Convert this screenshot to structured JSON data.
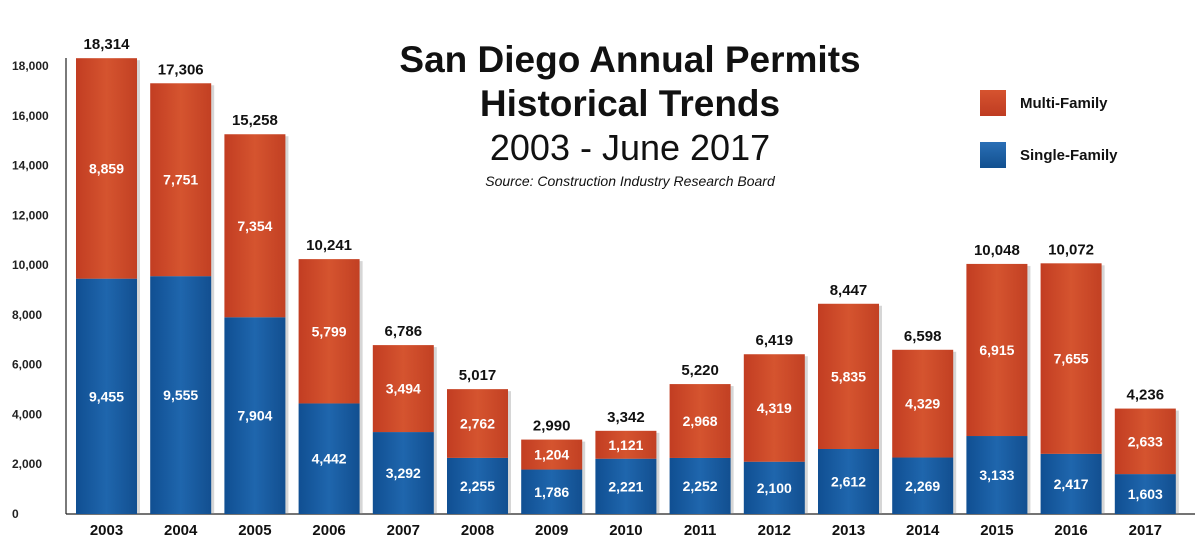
{
  "title": {
    "line1": "San Diego Annual Permits",
    "line2": "Historical Trends",
    "subtitle": "2003 - June 2017",
    "source": "Source: Construction Industry Research Board"
  },
  "legend": {
    "multi": "Multi-Family",
    "single": "Single-Family"
  },
  "colors": {
    "multi": "#d0482a",
    "single": "#1f62a8"
  },
  "chart_data": {
    "type": "bar",
    "stacked": true,
    "title": "San Diego Annual Permits Historical Trends",
    "subtitle": "2003 - June 2017",
    "categories": [
      "2003",
      "2004",
      "2005",
      "2006",
      "2007",
      "2008",
      "2009",
      "2010",
      "2011",
      "2012",
      "2013",
      "2014",
      "2015",
      "2016",
      "2017"
    ],
    "series": [
      {
        "name": "Single-Family",
        "values": [
          9455,
          9555,
          7904,
          4442,
          3292,
          2255,
          1786,
          2221,
          2252,
          2100,
          2612,
          2269,
          3133,
          2417,
          1603
        ]
      },
      {
        "name": "Multi-Family",
        "values": [
          8859,
          7751,
          7354,
          5799,
          3494,
          2762,
          1204,
          1121,
          2968,
          4319,
          5835,
          4329,
          6915,
          7655,
          2633
        ]
      }
    ],
    "totals": [
      18314,
      17306,
      15258,
      10241,
      6786,
      5017,
      2990,
      3342,
      5220,
      6419,
      8447,
      6598,
      10048,
      10072,
      4236
    ],
    "ylim": [
      0,
      18000
    ],
    "yticks": [
      0,
      2000,
      4000,
      6000,
      8000,
      10000,
      12000,
      14000,
      16000,
      18000
    ],
    "ytick_labels": [
      "0",
      "2,000",
      "4,000",
      "6,000",
      "8,000",
      "10,000",
      "12,000",
      "14,000",
      "16,000",
      "18,000"
    ],
    "xlabel": "",
    "ylabel": "",
    "legend_position": "top-right",
    "grid": false
  }
}
